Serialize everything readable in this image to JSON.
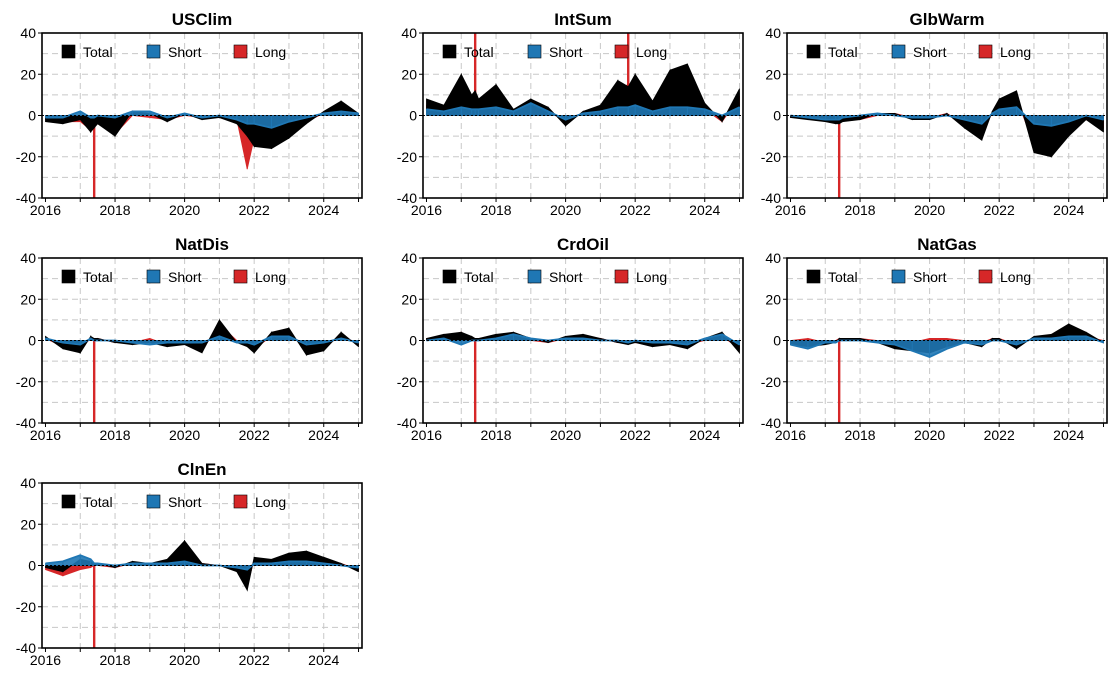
{
  "colors": {
    "Total": "#000000",
    "Short": "#1f77b4",
    "Long": "#d62728"
  },
  "chart_data": [
    {
      "type": "area",
      "title": "USClim",
      "xlabel": "",
      "ylabel": "",
      "xlim": [
        2015.9,
        2025.1
      ],
      "ylim": [
        -40,
        40
      ],
      "x_ticks": [
        "2016",
        "2018",
        "2020",
        "2022",
        "2024"
      ],
      "y_ticks": [
        "40",
        "20",
        "0",
        "-20",
        "-40"
      ],
      "grid": true,
      "legend": "top-left",
      "x": [
        2016.0,
        2016.5,
        2017.0,
        2017.3,
        2017.4,
        2017.5,
        2018.0,
        2018.5,
        2019.0,
        2019.5,
        2020.0,
        2020.5,
        2021.0,
        2021.5,
        2021.8,
        2022.0,
        2022.5,
        2023.0,
        2023.5,
        2024.0,
        2024.5,
        2025.0
      ],
      "series": [
        {
          "name": "Total",
          "values": [
            -3,
            -4,
            -2,
            -8,
            -6,
            -4,
            -10,
            2,
            1,
            -3,
            1,
            -2,
            -1,
            -4,
            -10,
            -15,
            -16,
            -11,
            -4,
            2,
            7,
            1
          ]
        },
        {
          "name": "Short",
          "values": [
            -1,
            -1,
            2,
            -1,
            -1,
            0,
            -1,
            2,
            2,
            -1,
            1,
            -1,
            0,
            -2,
            -4,
            -4,
            -6,
            -3,
            -1,
            1,
            2,
            1
          ]
        },
        {
          "name": "Long",
          "values": [
            -2,
            -3,
            -3,
            -7,
            -40,
            -4,
            -9,
            0,
            -1,
            -2,
            0,
            -1,
            -1,
            -2,
            -26,
            -11,
            -10,
            -8,
            -3,
            1,
            5,
            0
          ]
        }
      ]
    },
    {
      "type": "area",
      "title": "IntSum",
      "xlabel": "",
      "ylabel": "",
      "xlim": [
        2015.9,
        2025.1
      ],
      "ylim": [
        -40,
        40
      ],
      "x_ticks": [
        "2016",
        "2018",
        "2020",
        "2022",
        "2024"
      ],
      "y_ticks": [
        "40",
        "20",
        "0",
        "-20",
        "-40"
      ],
      "grid": true,
      "legend": "top-left",
      "x": [
        2016.0,
        2016.5,
        2017.0,
        2017.3,
        2017.4,
        2017.5,
        2018.0,
        2018.5,
        2019.0,
        2019.5,
        2020.0,
        2020.5,
        2021.0,
        2021.5,
        2021.8,
        2022.0,
        2022.5,
        2023.0,
        2023.5,
        2024.0,
        2024.5,
        2025.0
      ],
      "series": [
        {
          "name": "Total",
          "values": [
            8,
            5,
            20,
            10,
            12,
            8,
            15,
            3,
            8,
            4,
            -5,
            2,
            5,
            17,
            14,
            20,
            7,
            22,
            25,
            6,
            -3,
            13
          ]
        },
        {
          "name": "Short",
          "values": [
            3,
            2,
            4,
            3,
            3,
            3,
            4,
            2,
            6,
            2,
            -2,
            1,
            2,
            4,
            4,
            5,
            2,
            4,
            4,
            3,
            0,
            4
          ]
        },
        {
          "name": "Long",
          "values": [
            5,
            3,
            16,
            7,
            40,
            5,
            11,
            1,
            2,
            2,
            -3,
            1,
            3,
            13,
            40,
            15,
            5,
            18,
            21,
            3,
            -3,
            9
          ]
        }
      ]
    },
    {
      "type": "area",
      "title": "GlbWarm",
      "xlabel": "",
      "ylabel": "",
      "xlim": [
        2015.9,
        2025.1
      ],
      "ylim": [
        -40,
        40
      ],
      "x_ticks": [
        "2016",
        "2018",
        "2020",
        "2022",
        "2024"
      ],
      "y_ticks": [
        "40",
        "20",
        "0",
        "-20",
        "-40"
      ],
      "grid": true,
      "legend": "top-left",
      "x": [
        2016.0,
        2016.5,
        2017.0,
        2017.3,
        2017.4,
        2017.5,
        2018.0,
        2018.5,
        2019.0,
        2019.5,
        2020.0,
        2020.5,
        2021.0,
        2021.5,
        2021.8,
        2022.0,
        2022.5,
        2023.0,
        2023.5,
        2024.0,
        2024.5,
        2025.0
      ],
      "series": [
        {
          "name": "Total",
          "values": [
            -1,
            -2,
            -3,
            -4,
            -4,
            -3,
            -2,
            1,
            1,
            -2,
            -2,
            1,
            -6,
            -12,
            2,
            8,
            12,
            -18,
            -20,
            -10,
            -2,
            -8
          ]
        },
        {
          "name": "Short",
          "values": [
            0,
            -1,
            -2,
            -2,
            -2,
            -1,
            0,
            1,
            0,
            -1,
            -1,
            0,
            -2,
            -4,
            1,
            3,
            4,
            -4,
            -5,
            -3,
            0,
            -2
          ]
        },
        {
          "name": "Long",
          "values": [
            -1,
            -1,
            -1,
            -2,
            -40,
            -2,
            -2,
            0,
            1,
            -1,
            -1,
            1,
            -4,
            -8,
            1,
            5,
            8,
            -14,
            -16,
            -7,
            -2,
            -6
          ]
        }
      ]
    },
    {
      "type": "area",
      "title": "NatDis",
      "xlabel": "",
      "ylabel": "",
      "xlim": [
        2015.9,
        2025.1
      ],
      "ylim": [
        -40,
        40
      ],
      "x_ticks": [
        "2016",
        "2018",
        "2020",
        "2022",
        "2024"
      ],
      "y_ticks": [
        "40",
        "20",
        "0",
        "-20",
        "-40"
      ],
      "grid": true,
      "legend": "top-left",
      "x": [
        2016.0,
        2016.5,
        2017.0,
        2017.3,
        2017.4,
        2017.5,
        2018.0,
        2018.5,
        2019.0,
        2019.5,
        2020.0,
        2020.5,
        2021.0,
        2021.5,
        2021.8,
        2022.0,
        2022.5,
        2023.0,
        2023.5,
        2024.0,
        2024.5,
        2025.0
      ],
      "series": [
        {
          "name": "Total",
          "values": [
            2,
            -4,
            -6,
            2,
            1,
            1,
            -1,
            -2,
            -1,
            -3,
            -2,
            -6,
            10,
            -1,
            -3,
            -6,
            4,
            6,
            -7,
            -5,
            4,
            -3
          ]
        },
        {
          "name": "Short",
          "values": [
            1,
            -1,
            -2,
            1,
            0,
            0,
            0,
            -1,
            -2,
            -1,
            -1,
            -1,
            2,
            -1,
            -1,
            -2,
            2,
            2,
            -2,
            -1,
            1,
            -1
          ]
        },
        {
          "name": "Long",
          "values": [
            1,
            -3,
            -4,
            1,
            -40,
            1,
            -1,
            -1,
            1,
            -2,
            -1,
            -5,
            8,
            0,
            -2,
            -4,
            2,
            4,
            -5,
            -4,
            3,
            -2
          ]
        }
      ]
    },
    {
      "type": "area",
      "title": "CrdOil",
      "xlabel": "",
      "ylabel": "",
      "xlim": [
        2015.9,
        2025.1
      ],
      "ylim": [
        -40,
        40
      ],
      "x_ticks": [
        "2016",
        "2018",
        "2020",
        "2022",
        "2024"
      ],
      "y_ticks": [
        "40",
        "20",
        "0",
        "-20",
        "-40"
      ],
      "grid": true,
      "legend": "top-left",
      "x": [
        2016.0,
        2016.5,
        2017.0,
        2017.3,
        2017.4,
        2017.5,
        2018.0,
        2018.5,
        2019.0,
        2019.5,
        2020.0,
        2020.5,
        2021.0,
        2021.5,
        2021.8,
        2022.0,
        2022.5,
        2023.0,
        2023.5,
        2024.0,
        2024.5,
        2025.0
      ],
      "series": [
        {
          "name": "Total",
          "values": [
            1,
            3,
            4,
            2,
            1,
            1,
            3,
            4,
            1,
            -1,
            2,
            3,
            1,
            -1,
            -2,
            -1,
            -3,
            -2,
            -4,
            1,
            4,
            -6
          ]
        },
        {
          "name": "Short",
          "values": [
            0,
            1,
            -2,
            0,
            0,
            0,
            1,
            3,
            1,
            0,
            1,
            1,
            0,
            0,
            -1,
            0,
            -1,
            -1,
            -2,
            1,
            3,
            -2
          ]
        },
        {
          "name": "Long",
          "values": [
            1,
            2,
            4,
            1,
            -40,
            1,
            2,
            2,
            0,
            -1,
            1,
            2,
            1,
            -1,
            -1,
            -1,
            -2,
            -1,
            -2,
            0,
            2,
            -4
          ]
        }
      ]
    },
    {
      "type": "area",
      "title": "NatGas",
      "xlabel": "",
      "ylabel": "",
      "xlim": [
        2015.9,
        2025.1
      ],
      "ylim": [
        -40,
        40
      ],
      "x_ticks": [
        "2016",
        "2018",
        "2020",
        "2022",
        "2024"
      ],
      "y_ticks": [
        "40",
        "20",
        "0",
        "-20",
        "-40"
      ],
      "grid": true,
      "legend": "top-left",
      "x": [
        2016.0,
        2016.5,
        2017.0,
        2017.3,
        2017.4,
        2017.5,
        2018.0,
        2018.5,
        2019.0,
        2019.5,
        2020.0,
        2020.5,
        2021.0,
        2021.5,
        2021.8,
        2022.0,
        2022.5,
        2023.0,
        2023.5,
        2024.0,
        2024.5,
        2025.0
      ],
      "series": [
        {
          "name": "Total",
          "values": [
            -2,
            -3,
            -2,
            -1,
            1,
            1,
            1,
            -1,
            -4,
            -5,
            -6,
            -3,
            -1,
            -3,
            1,
            1,
            -4,
            2,
            3,
            8,
            4,
            -1
          ]
        },
        {
          "name": "Short",
          "values": [
            -2,
            -4,
            -1,
            -1,
            0,
            0,
            0,
            -1,
            -2,
            -5,
            -8,
            -4,
            -1,
            -2,
            0,
            0,
            -2,
            1,
            1,
            2,
            2,
            -1
          ]
        },
        {
          "name": "Long",
          "values": [
            0,
            1,
            -1,
            0,
            -40,
            1,
            1,
            0,
            -2,
            -1,
            1,
            1,
            0,
            -1,
            1,
            1,
            -2,
            1,
            2,
            6,
            2,
            0
          ]
        }
      ]
    },
    {
      "type": "area",
      "title": "ClnEn",
      "xlabel": "",
      "ylabel": "",
      "xlim": [
        2015.9,
        2025.1
      ],
      "ylim": [
        -40,
        40
      ],
      "x_ticks": [
        "2016",
        "2018",
        "2020",
        "2022",
        "2024"
      ],
      "y_ticks": [
        "40",
        "20",
        "0",
        "-20",
        "-40"
      ],
      "grid": true,
      "legend": "top-left",
      "x": [
        2016.0,
        2016.5,
        2017.0,
        2017.3,
        2017.4,
        2017.5,
        2018.0,
        2018.5,
        2019.0,
        2019.5,
        2020.0,
        2020.5,
        2021.0,
        2021.5,
        2021.8,
        2022.0,
        2022.5,
        2023.0,
        2023.5,
        2024.0,
        2024.5,
        2025.0
      ],
      "series": [
        {
          "name": "Total",
          "values": [
            -1,
            -3,
            3,
            2,
            1,
            1,
            -1,
            2,
            1,
            3,
            12,
            1,
            0,
            -3,
            -12,
            4,
            3,
            6,
            7,
            4,
            1,
            -3
          ]
        },
        {
          "name": "Short",
          "values": [
            1,
            2,
            5,
            3,
            1,
            1,
            0,
            1,
            1,
            1,
            2,
            0,
            0,
            -1,
            -2,
            1,
            1,
            2,
            2,
            1,
            0,
            -1
          ]
        },
        {
          "name": "Long",
          "values": [
            -2,
            -5,
            -2,
            -1,
            -40,
            0,
            -1,
            1,
            0,
            2,
            10,
            1,
            0,
            -2,
            -10,
            3,
            2,
            4,
            5,
            3,
            1,
            -2
          ]
        }
      ]
    }
  ]
}
